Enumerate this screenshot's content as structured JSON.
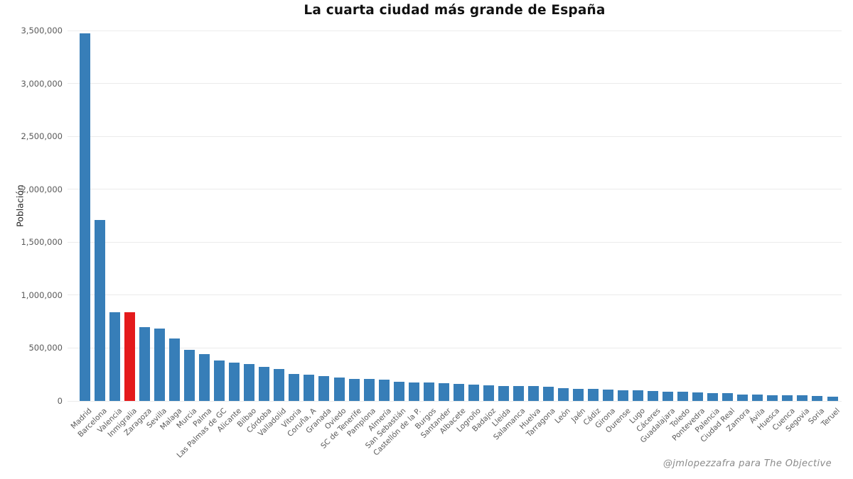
{
  "title": "La cuarta ciudad más grande de España",
  "watermark": "@jmlopezzafra para The Objective",
  "colors": {
    "bar": "#377eb8",
    "highlight": "#e41a1c",
    "gridline": "#ebebeb",
    "tick_text": "#595959",
    "title_text": "#111111",
    "background": "#ffffff"
  },
  "chart_data": {
    "type": "bar",
    "title": "La cuarta ciudad más grande de España",
    "xlabel": "",
    "ylabel": "Población",
    "ylim": [
      0,
      3500000
    ],
    "grid": true,
    "legend": "none",
    "yticks": [
      0,
      500000,
      1000000,
      1500000,
      2000000,
      2500000,
      3000000,
      3500000
    ],
    "ytick_labels": [
      "0",
      "500,000",
      "1,000,000",
      "1,500,000",
      "2,000,000",
      "2,500,000",
      "3,000,000",
      "3,500,000"
    ],
    "categories": [
      "Madrid",
      "Barcelona",
      "Valencia",
      "Inmigralia",
      "Zaragoza",
      "Sevilla",
      "Malaga",
      "Murcia",
      "Palma",
      "Las Palmas de GC",
      "Alicante",
      "Bilbao",
      "Córdoba",
      "Valladolid",
      "Vitoria",
      "Coruña, A",
      "Granada",
      "Oviedo",
      "SC de Tenerife",
      "Pamplona",
      "Almería",
      "San Sebastián",
      "Castellón de la P.",
      "Burgos",
      "Santander",
      "Albacete",
      "Logroño",
      "Badajoz",
      "Lleida",
      "Salamanca",
      "Huelva",
      "Tarragona",
      "León",
      "Jaén",
      "Cádiz",
      "Girona",
      "Ourense",
      "Lugo",
      "Cáceres",
      "Guadalajara",
      "Toledo",
      "Pontevedra",
      "Palencia",
      "Ciudad Real",
      "Zamora",
      "Ávila",
      "Huesca",
      "Cuenca",
      "Segovia",
      "Soria",
      "Teruel"
    ],
    "values": [
      3473000,
      1710000,
      841000,
      838000,
      700000,
      686000,
      591000,
      481000,
      440000,
      381000,
      364000,
      347000,
      321000,
      301000,
      257000,
      247000,
      234000,
      222000,
      210000,
      206000,
      202000,
      184000,
      176000,
      174000,
      165000,
      163000,
      151000,
      150000,
      141000,
      144000,
      143000,
      136000,
      120000,
      113000,
      111000,
      105000,
      103000,
      98000,
      96000,
      89000,
      88000,
      81000,
      76000,
      74000,
      60000,
      58000,
      56000,
      55000,
      53000,
      44000,
      38000
    ],
    "highlight": {
      "category": "Inmigralia",
      "index": 3,
      "color": "#e41a1c"
    },
    "bar_color": "#377eb8",
    "annotation": "@jmlopezzafra para The Objective"
  }
}
